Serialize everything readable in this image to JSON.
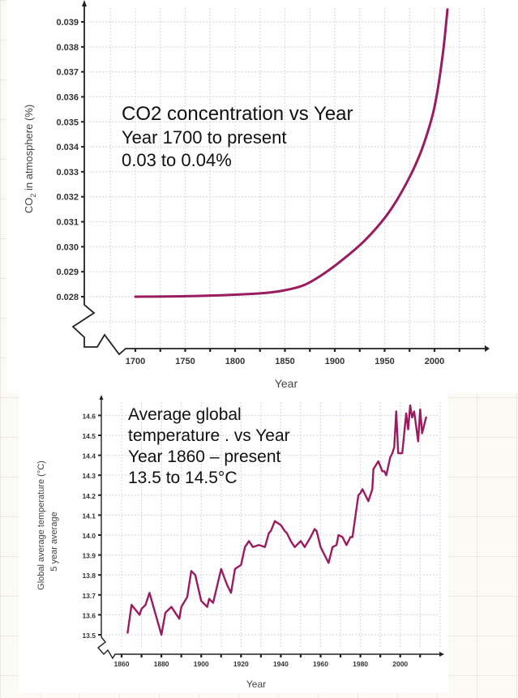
{
  "colors": {
    "line": "#9b1b5f",
    "axis": "#222222",
    "grid": "#d8dbe8",
    "tick_text": "#333333"
  },
  "chart_data": [
    {
      "type": "line",
      "name": "co2",
      "title": "CO2 concentration  vs Year",
      "annotation_lines": [
        "CO2 concentration  vs Year",
        "Year 1700  to present",
        "0.03 to 0.04%"
      ],
      "xlabel": "Year",
      "ylabel": "CO2 in atmosphere (%)",
      "xlim": [
        1700,
        2050
      ],
      "ylim": [
        0.028,
        0.0398
      ],
      "xticks": [
        1700,
        1750,
        1800,
        1850,
        1900,
        1950,
        2000
      ],
      "xtick_labels": [
        "1700",
        "1750",
        "1800",
        "1850",
        "1900",
        "1950",
        "2000"
      ],
      "yticks": [
        0.028,
        0.029,
        0.03,
        0.031,
        0.032,
        0.033,
        0.034,
        0.035,
        0.036,
        0.037,
        0.038,
        0.039
      ],
      "ytick_labels": [
        "0.028",
        "0.029",
        "0.030",
        "0.031",
        "0.032",
        "0.033",
        "0.034",
        "0.035",
        "0.036",
        "0.037",
        "0.038",
        "0.039"
      ],
      "axis_break": true,
      "grid": true,
      "x": [
        1700,
        1750,
        1800,
        1830,
        1850,
        1870,
        1890,
        1910,
        1930,
        1950,
        1965,
        1980,
        1990,
        2000,
        2008,
        2013
      ],
      "y": [
        0.028,
        0.02802,
        0.02808,
        0.02815,
        0.02826,
        0.02848,
        0.02895,
        0.02955,
        0.03025,
        0.03115,
        0.03205,
        0.0332,
        0.0342,
        0.0356,
        0.0376,
        0.0395
      ]
    },
    {
      "type": "line",
      "name": "temperature",
      "title": "Average global temperature . vs Year",
      "annotation_lines": [
        "Average global",
        "temperature . vs Year",
        "Year 1860 – present",
        "13.5 to 14.5°C"
      ],
      "xlabel": "Year",
      "ylabel": "Global average temperature (°C)",
      "ylabel2": "5 year average",
      "xlim": [
        1860,
        2020
      ],
      "ylim": [
        13.5,
        14.65
      ],
      "xticks": [
        1860,
        1880,
        1900,
        1920,
        1940,
        1960,
        1980,
        2000
      ],
      "xtick_labels": [
        "1860",
        "1880",
        "1900",
        "1920",
        "1940",
        "1960",
        "1980",
        "2000"
      ],
      "minor_xticks": [
        1870,
        1890,
        1910,
        1930,
        1950,
        1970,
        1990,
        2010
      ],
      "yticks": [
        13.5,
        13.6,
        13.7,
        13.8,
        13.9,
        14.0,
        14.1,
        14.2,
        14.3,
        14.4,
        14.5,
        14.6
      ],
      "ytick_labels": [
        "13.5",
        "13.6",
        "13.7",
        "13.8",
        "13.9",
        "14.0",
        "14.1",
        "14.2",
        "14.3",
        "14.4",
        "14.5",
        "14.6"
      ],
      "axis_break": true,
      "grid": true,
      "x": [
        1863,
        1865,
        1869,
        1870,
        1872,
        1874,
        1880,
        1882,
        1885,
        1889,
        1890,
        1893,
        1895,
        1897,
        1900,
        1903,
        1904,
        1906,
        1910,
        1913,
        1915,
        1917,
        1920,
        1922,
        1924,
        1926,
        1929,
        1932,
        1934,
        1935,
        1937,
        1940,
        1942,
        1943,
        1945,
        1947,
        1950,
        1952,
        1955,
        1957,
        1958,
        1960,
        1964,
        1966,
        1968,
        1969,
        1971,
        1973,
        1975,
        1976,
        1979,
        1980,
        1981,
        1984,
        1986,
        1986.5,
        1989,
        1991,
        1992,
        1993,
        1995,
        1996,
        1997,
        1998,
        1999,
        2001,
        2003,
        2004,
        2005,
        2006,
        2007,
        2009,
        2010,
        2011,
        2013
      ],
      "y": [
        13.51,
        13.65,
        13.6,
        13.63,
        13.65,
        13.71,
        13.5,
        13.61,
        13.64,
        13.58,
        13.64,
        13.69,
        13.82,
        13.8,
        13.67,
        13.64,
        13.68,
        13.66,
        13.83,
        13.75,
        13.71,
        13.83,
        13.85,
        13.94,
        13.97,
        13.94,
        13.95,
        13.94,
        14.01,
        14.02,
        14.07,
        14.05,
        14.02,
        14.01,
        13.97,
        13.94,
        13.97,
        13.94,
        13.99,
        14.03,
        14.02,
        13.94,
        13.86,
        13.94,
        13.95,
        14.0,
        13.99,
        13.95,
        13.99,
        13.99,
        14.2,
        14.21,
        14.23,
        14.17,
        14.23,
        14.33,
        14.37,
        14.32,
        14.32,
        14.3,
        14.39,
        14.41,
        14.44,
        14.62,
        14.41,
        14.41,
        14.61,
        14.53,
        14.65,
        14.59,
        14.62,
        14.47,
        14.63,
        14.51,
        14.59
      ]
    }
  ]
}
